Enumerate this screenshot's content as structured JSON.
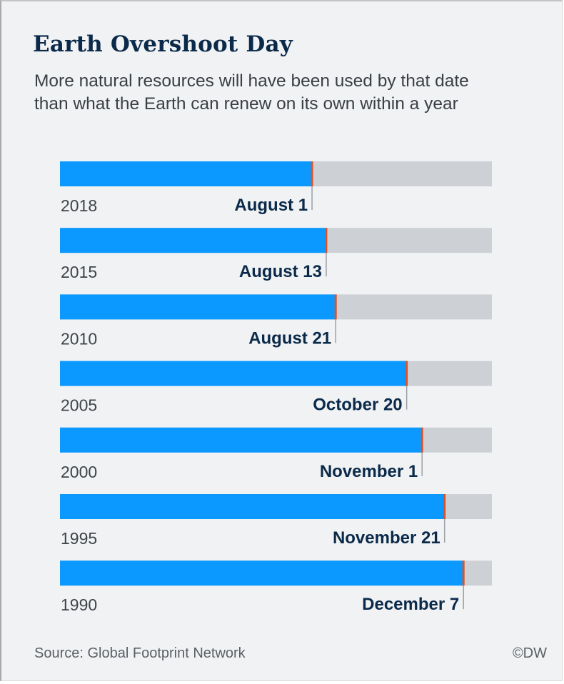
{
  "header": {
    "title": "Earth Overshoot Day",
    "subtitle": "More natural resources will have been used by that date than what the Earth can renew on its own within a year"
  },
  "footer": {
    "source": "Source: Global Footprint Network",
    "credit": "©DW"
  },
  "colors": {
    "bar_fill": "#0b99ff",
    "bar_track": "#cdd1d6",
    "marker": "#d9542b",
    "date_text": "#0b2a4a"
  },
  "chart_data": {
    "type": "bar",
    "orientation": "horizontal",
    "title": "Earth Overshoot Day",
    "xlim": [
      0,
      365
    ],
    "categories": [
      "2018",
      "2015",
      "2010",
      "2005",
      "2000",
      "1995",
      "1990"
    ],
    "series": [
      {
        "values": [
          213,
          225,
          233,
          293,
          306,
          325,
          341
        ]
      }
    ],
    "data_labels": [
      "August 1",
      "August 13",
      "August 21",
      "October 20",
      "November 1",
      "November 21",
      "December 7"
    ]
  }
}
